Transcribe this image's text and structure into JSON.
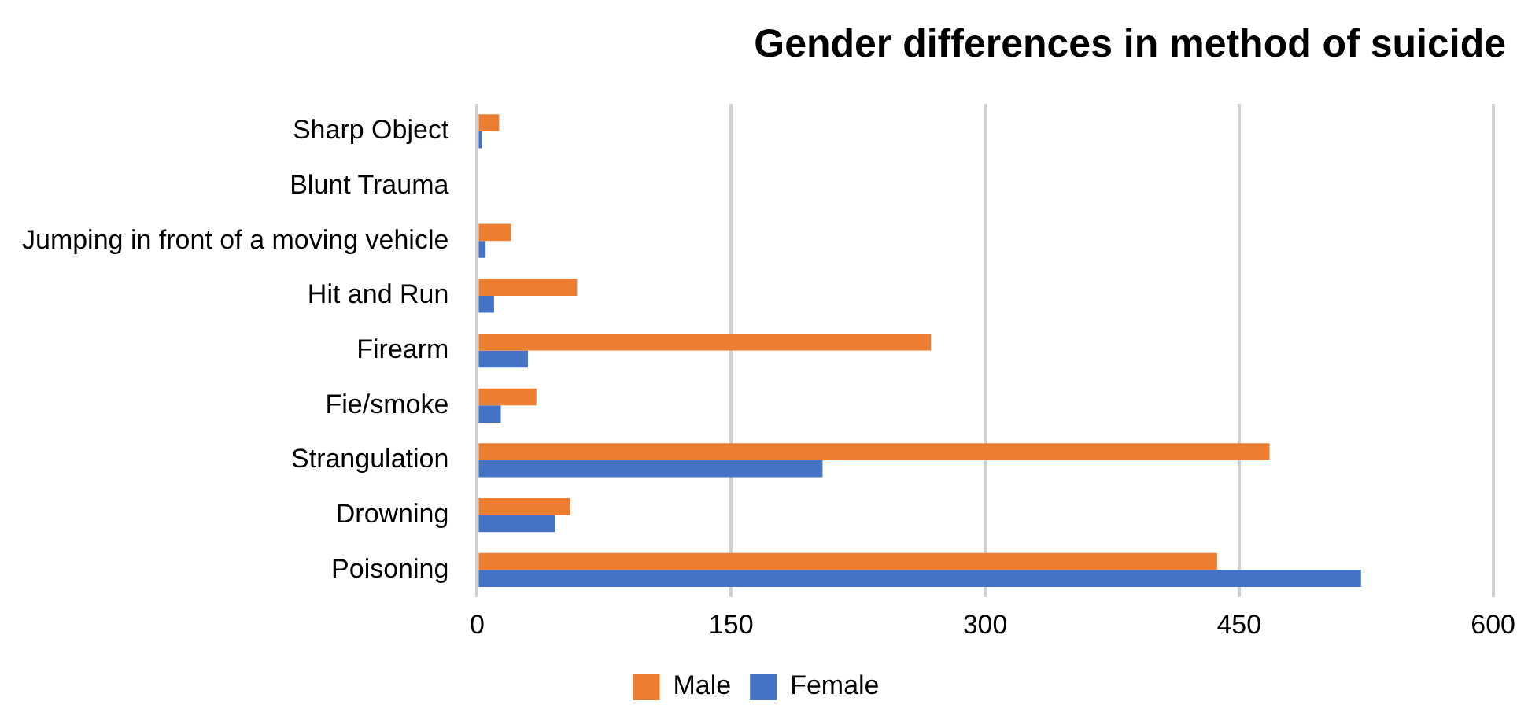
{
  "chart_data": {
    "type": "bar",
    "orientation": "horizontal",
    "title": "Gender differences in method of suicide",
    "categories": [
      "Sharp Object",
      "Blunt Trauma",
      "Jumping in front of a moving vehicle",
      "Hit and Run",
      "Firearm",
      "Fie/smoke",
      "Strangulation",
      "Drowning",
      "Poisoning"
    ],
    "series": [
      {
        "name": "Male",
        "color": "#ed7d31",
        "values": [
          13,
          0,
          20,
          59,
          268,
          35,
          468,
          55,
          437
        ]
      },
      {
        "name": "Female",
        "color": "#4472c4",
        "values": [
          3,
          0,
          5,
          10,
          30,
          14,
          204,
          46,
          522
        ]
      }
    ],
    "xlim": [
      0,
      600
    ],
    "xticks": [
      0,
      150,
      300,
      450,
      600
    ],
    "grid": "x",
    "legend": "bottom"
  }
}
